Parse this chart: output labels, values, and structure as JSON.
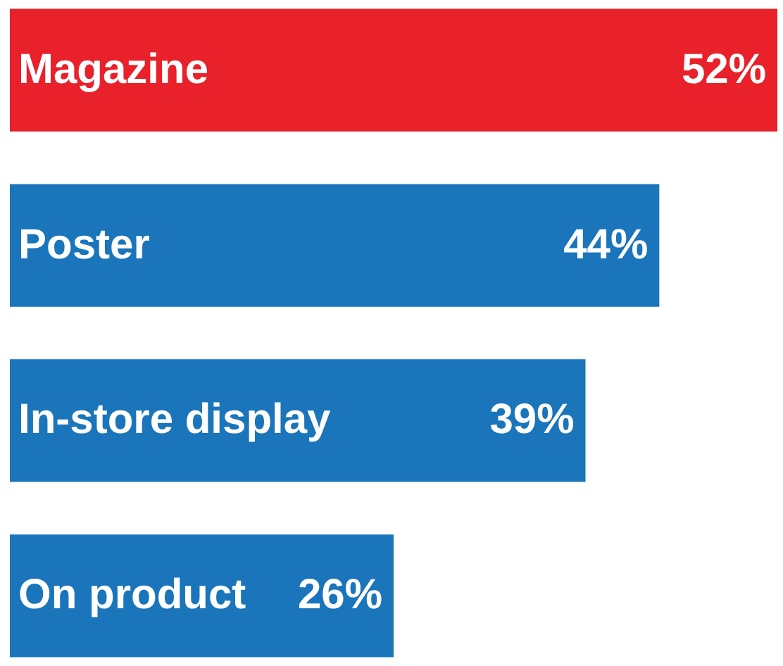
{
  "chart_data": {
    "type": "bar",
    "orientation": "horizontal",
    "categories": [
      "Magazine",
      "Poster",
      "In-store display",
      "On product"
    ],
    "values": [
      52,
      44,
      39,
      26
    ],
    "colors": [
      "#e8212a",
      "#1a75bb",
      "#1a75bb",
      "#1a75bb"
    ],
    "value_labels": [
      "52%",
      "44%",
      "39%",
      "26%"
    ],
    "grid": false
  }
}
